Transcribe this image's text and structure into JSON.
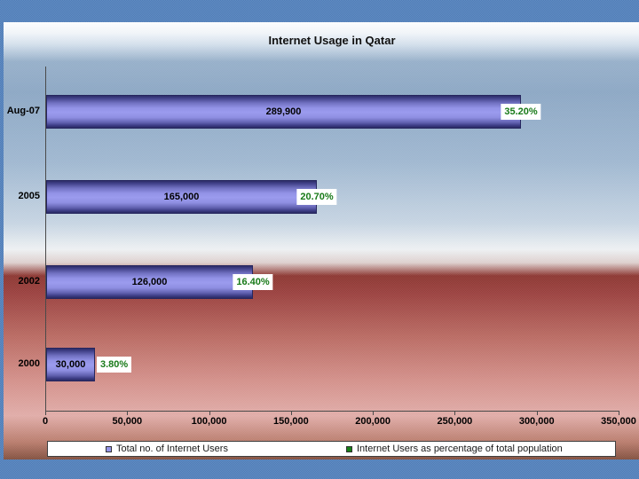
{
  "slide": {
    "background_color": "#4d7cb8"
  },
  "chart_data": {
    "type": "bar",
    "orientation": "horizontal",
    "title": "Internet Usage in Qatar",
    "categories": [
      "Aug-07",
      "2005",
      "2002",
      "2000"
    ],
    "series": [
      {
        "name": "Total no. of Internet Users",
        "values": [
          289900,
          165000,
          126000,
          30000
        ],
        "labels": [
          "289,900",
          "165,000",
          "126,000",
          "30,000"
        ],
        "color": "#9595ea"
      },
      {
        "name": "Internet Users as percentage of total population",
        "values": [
          35.2,
          20.7,
          16.4,
          3.8
        ],
        "labels": [
          "35.20%",
          "20.70%",
          "16.40%",
          "3.80%"
        ],
        "color": "#188018"
      }
    ],
    "xlim": [
      0,
      350000
    ],
    "x_tick_interval": 50000,
    "x_tick_labels": [
      "0",
      "50,000",
      "100,000",
      "150,000",
      "200,000",
      "250,000",
      "300,000",
      "350,000"
    ],
    "grid": false,
    "legend_position": "bottom"
  },
  "colors": {
    "slide_background": "#4d7cb8",
    "bar_fill_mid": "#9595ea",
    "bar_outline": "#26265e",
    "percent_label_text": "#187a18",
    "axis_line": "#4a4a4a",
    "title_text": "#111111"
  }
}
